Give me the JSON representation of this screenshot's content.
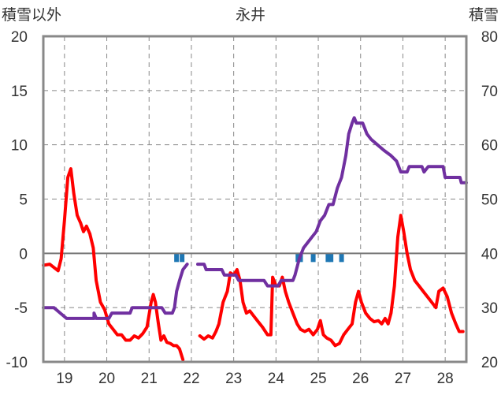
{
  "chart_data": {
    "type": "line",
    "title": "永井",
    "y_left_label": "積雪以外",
    "y_right_label": "積雪",
    "ylim_left": [
      -10,
      20
    ],
    "ylim_right": [
      20,
      80
    ],
    "yticks_left": [
      "20",
      "15",
      "10",
      "5",
      "0",
      "-5",
      "-10"
    ],
    "yticks_right": [
      "80",
      "70",
      "60",
      "50",
      "40",
      "30",
      "20"
    ],
    "xlim": [
      18.5,
      28.5
    ],
    "x_ticks": [
      19,
      20,
      21,
      22,
      23,
      24,
      25,
      26,
      27,
      28
    ],
    "x_tick_labels": [
      "19",
      "20",
      "21",
      "22",
      "23",
      "24",
      "25",
      "26",
      "27",
      "28"
    ],
    "grid": true,
    "colors": {
      "temperature": "#ff0000",
      "snow_depth": "#7030a0",
      "precipitation": "#1f77b4",
      "grid": "#888888",
      "frame": "#888888"
    },
    "series": [
      {
        "name": "",
        "axis": "left",
        "style": "line",
        "color": "#ff0000",
        "segments": [
          [
            [
              18.5,
              -1.1
            ],
            [
              18.65,
              -1.0
            ],
            [
              18.75,
              -1.3
            ],
            [
              18.85,
              -1.6
            ],
            [
              18.92,
              -0.5
            ],
            [
              19.0,
              3.0
            ],
            [
              19.08,
              7.0
            ],
            [
              19.15,
              7.8
            ],
            [
              19.22,
              5.5
            ],
            [
              19.3,
              3.5
            ],
            [
              19.38,
              2.8
            ],
            [
              19.45,
              2.0
            ],
            [
              19.52,
              2.5
            ],
            [
              19.6,
              1.8
            ],
            [
              19.68,
              0.5
            ],
            [
              19.75,
              -2.5
            ],
            [
              19.85,
              -4.5
            ],
            [
              19.95,
              -5.2
            ],
            [
              20.05,
              -6.5
            ],
            [
              20.15,
              -7.0
            ],
            [
              20.25,
              -7.5
            ],
            [
              20.35,
              -7.5
            ],
            [
              20.45,
              -8.0
            ],
            [
              20.55,
              -8.0
            ],
            [
              20.65,
              -7.6
            ],
            [
              20.75,
              -7.8
            ],
            [
              20.85,
              -7.4
            ],
            [
              20.95,
              -6.8
            ],
            [
              21.05,
              -4.5
            ],
            [
              21.1,
              -3.8
            ],
            [
              21.15,
              -4.5
            ],
            [
              21.22,
              -6.5
            ],
            [
              21.28,
              -8.0
            ],
            [
              21.35,
              -7.6
            ],
            [
              21.42,
              -8.2
            ],
            [
              21.5,
              -8.3
            ],
            [
              21.58,
              -8.5
            ],
            [
              21.65,
              -8.5
            ],
            [
              21.72,
              -8.8
            ],
            [
              21.8,
              -9.8
            ]
          ],
          [
            [
              22.2,
              -7.6
            ],
            [
              22.3,
              -7.9
            ],
            [
              22.4,
              -7.6
            ],
            [
              22.5,
              -7.8
            ],
            [
              22.58,
              -7.2
            ],
            [
              22.65,
              -6.5
            ],
            [
              22.75,
              -4.5
            ],
            [
              22.85,
              -3.5
            ],
            [
              22.92,
              -1.8
            ],
            [
              23.0,
              -2.0
            ],
            [
              23.08,
              -1.5
            ],
            [
              23.15,
              -2.5
            ],
            [
              23.22,
              -4.5
            ],
            [
              23.3,
              -5.5
            ],
            [
              23.38,
              -5.3
            ],
            [
              23.48,
              -5.8
            ],
            [
              23.58,
              -6.3
            ],
            [
              23.68,
              -6.8
            ],
            [
              23.8,
              -7.5
            ],
            [
              23.88,
              -7.5
            ],
            [
              23.92,
              -2.2
            ],
            [
              24.0,
              -3.0
            ],
            [
              24.08,
              -3.0
            ],
            [
              24.15,
              -2.2
            ],
            [
              24.22,
              -3.5
            ],
            [
              24.3,
              -4.5
            ],
            [
              24.4,
              -5.5
            ],
            [
              24.5,
              -6.5
            ],
            [
              24.58,
              -7.0
            ],
            [
              24.68,
              -7.2
            ],
            [
              24.78,
              -7.0
            ],
            [
              24.88,
              -7.5
            ],
            [
              24.98,
              -7.0
            ],
            [
              25.05,
              -6.2
            ],
            [
              25.12,
              -7.5
            ],
            [
              25.2,
              -7.8
            ],
            [
              25.3,
              -8.0
            ],
            [
              25.4,
              -8.5
            ],
            [
              25.5,
              -8.3
            ],
            [
              25.6,
              -7.5
            ],
            [
              25.7,
              -7.0
            ],
            [
              25.8,
              -6.5
            ],
            [
              25.88,
              -4.5
            ],
            [
              25.95,
              -3.5
            ],
            [
              26.02,
              -4.5
            ],
            [
              26.12,
              -5.5
            ],
            [
              26.22,
              -6.0
            ],
            [
              26.32,
              -6.3
            ],
            [
              26.42,
              -6.2
            ],
            [
              26.5,
              -6.5
            ],
            [
              26.58,
              -6.0
            ],
            [
              26.65,
              -6.5
            ],
            [
              26.72,
              -5.5
            ],
            [
              26.8,
              -3.0
            ],
            [
              26.88,
              1.5
            ],
            [
              26.95,
              3.5
            ],
            [
              27.02,
              2.0
            ],
            [
              27.1,
              0.0
            ],
            [
              27.18,
              -1.5
            ],
            [
              27.28,
              -2.5
            ],
            [
              27.38,
              -3.0
            ],
            [
              27.48,
              -3.5
            ],
            [
              27.58,
              -4.0
            ],
            [
              27.68,
              -4.5
            ],
            [
              27.78,
              -5.0
            ],
            [
              27.85,
              -3.5
            ],
            [
              27.95,
              -3.2
            ],
            [
              28.05,
              -4.0
            ],
            [
              28.15,
              -5.5
            ],
            [
              28.25,
              -6.5
            ],
            [
              28.33,
              -7.2
            ],
            [
              28.42,
              -7.2
            ]
          ]
        ]
      },
      {
        "name": "",
        "axis": "right",
        "style": "line",
        "color": "#7030a0",
        "segments": [
          [
            [
              18.5,
              30
            ],
            [
              18.75,
              30
            ],
            [
              18.9,
              29
            ],
            [
              19.05,
              28
            ],
            [
              19.3,
              28
            ],
            [
              19.7,
              28
            ],
            [
              19.7,
              29
            ],
            [
              19.75,
              28
            ],
            [
              20.05,
              28
            ],
            [
              20.12,
              29
            ],
            [
              20.55,
              29
            ],
            [
              20.6,
              30
            ],
            [
              21.0,
              30
            ],
            [
              21.3,
              30
            ],
            [
              21.38,
              29
            ],
            [
              21.55,
              29
            ],
            [
              21.6,
              30
            ],
            [
              21.65,
              33
            ],
            [
              21.72,
              35
            ],
            [
              21.8,
              37
            ],
            [
              21.9,
              38
            ]
          ],
          [
            [
              22.15,
              38
            ],
            [
              22.3,
              38
            ],
            [
              22.35,
              37
            ],
            [
              22.72,
              37
            ],
            [
              22.78,
              36
            ],
            [
              23.05,
              36
            ],
            [
              23.12,
              35
            ],
            [
              23.72,
              35
            ],
            [
              23.8,
              34
            ],
            [
              23.95,
              34
            ],
            [
              24.05,
              34
            ],
            [
              24.12,
              35
            ],
            [
              24.4,
              35
            ],
            [
              24.45,
              36
            ],
            [
              24.55,
              39
            ],
            [
              24.65,
              41
            ],
            [
              24.75,
              42
            ],
            [
              24.85,
              43
            ],
            [
              24.95,
              44
            ],
            [
              25.05,
              46
            ],
            [
              25.15,
              47
            ],
            [
              25.25,
              49
            ],
            [
              25.35,
              49
            ],
            [
              25.45,
              52
            ],
            [
              25.55,
              54
            ],
            [
              25.65,
              58
            ],
            [
              25.72,
              62
            ],
            [
              25.8,
              64
            ],
            [
              25.85,
              65
            ],
            [
              25.9,
              64
            ],
            [
              26.05,
              64
            ],
            [
              26.15,
              62
            ],
            [
              26.25,
              61
            ],
            [
              26.4,
              60
            ],
            [
              26.55,
              59
            ],
            [
              26.72,
              58
            ],
            [
              26.85,
              57
            ],
            [
              26.95,
              55
            ],
            [
              27.1,
              55
            ],
            [
              27.15,
              56
            ],
            [
              27.45,
              56
            ],
            [
              27.5,
              55
            ],
            [
              27.6,
              56
            ],
            [
              27.95,
              56
            ],
            [
              28.0,
              54
            ],
            [
              28.35,
              54
            ],
            [
              28.38,
              53
            ],
            [
              28.5,
              53
            ]
          ]
        ]
      },
      {
        "name": "",
        "axis": "left",
        "style": "bar",
        "color": "#1f77b4",
        "x": [
          21.65,
          21.78,
          24.52,
          24.58,
          24.88,
          25.23,
          25.3,
          25.55
        ],
        "values": [
          0.8,
          0.8,
          0.8,
          0.8,
          0.8,
          0.8,
          0.8,
          0.8
        ]
      }
    ]
  }
}
